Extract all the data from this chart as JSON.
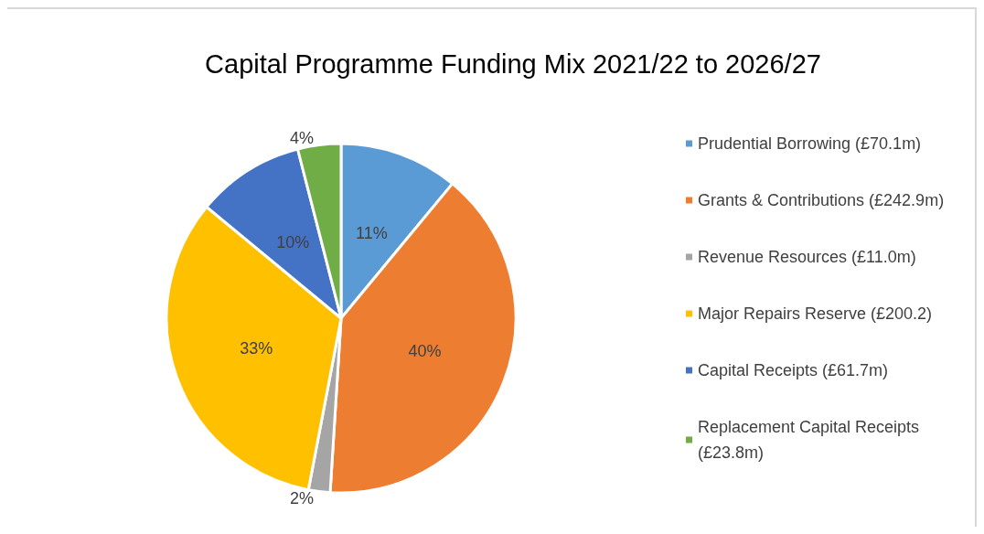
{
  "chart_data": {
    "type": "pie",
    "title": "Capital Programme Funding Mix 2021/22 to 2026/27",
    "categories": [
      "Prudential Borrowing (£70.1m)",
      "Grants & Contributions (£242.9m)",
      "Revenue Resources (£11.0m)",
      "Major Repairs Reserve (£200.2)",
      "Capital Receipts (£61.7m)",
      "Replacement Capital Receipts (£23.8m)"
    ],
    "values": [
      11,
      40,
      2,
      33,
      10,
      4
    ],
    "value_labels": [
      "11%",
      "40%",
      "2%",
      "33%",
      "10%",
      "4%"
    ],
    "colors": [
      "#5b9bd5",
      "#ed7d31",
      "#a5a5a5",
      "#ffc000",
      "#4472c4",
      "#70ad47"
    ],
    "legend": "right"
  }
}
